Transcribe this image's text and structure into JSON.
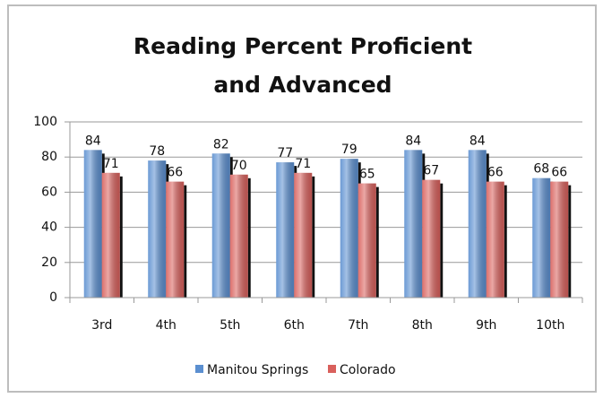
{
  "chart_data": {
    "type": "bar",
    "title": "Reading Percent Proficient and Advanced",
    "categories": [
      "3rd",
      "4th",
      "5th",
      "6th",
      "7th",
      "8th",
      "9th",
      "10th"
    ],
    "series": [
      {
        "name": "Manitou Springs",
        "color": "#5b8fd0",
        "values": [
          84,
          78,
          82,
          77,
          79,
          84,
          84,
          68
        ]
      },
      {
        "name": "Colorado",
        "color": "#d9605c",
        "values": [
          71,
          66,
          70,
          71,
          65,
          67,
          66,
          66
        ]
      }
    ],
    "ylim": [
      0,
      100
    ],
    "yticks": [
      0,
      20,
      40,
      60,
      80,
      100
    ],
    "grid": true,
    "legend": "bottom"
  }
}
